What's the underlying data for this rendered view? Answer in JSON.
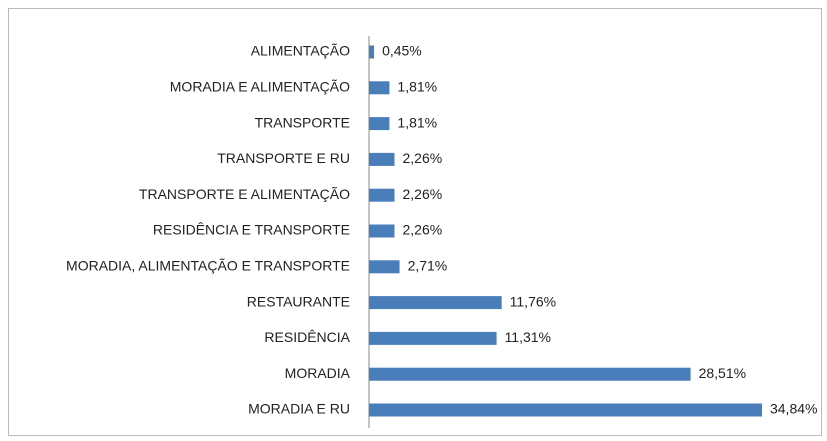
{
  "chart_data": {
    "type": "barh",
    "categories": [
      "ALIMENTAÇÃO",
      "MORADIA E ALIMENTAÇÃO",
      "TRANSPORTE",
      "TRANSPORTE E RU",
      "TRANSPORTE E ALIMENTAÇÃO",
      "RESIDÊNCIA E TRANSPORTE",
      "MORADIA, ALIMENTAÇÃO E TRANSPORTE",
      "RESTAURANTE",
      "RESIDÊNCIA",
      "MORADIA",
      "MORADIA E RU"
    ],
    "values": [
      0.45,
      1.81,
      1.81,
      2.26,
      2.26,
      2.26,
      2.71,
      11.76,
      11.31,
      28.51,
      34.84
    ],
    "value_labels": [
      "0,45%",
      "1,81%",
      "1,81%",
      "2,26%",
      "2,26%",
      "2,26%",
      "2,71%",
      "11,76%",
      "11,31%",
      "28,51%",
      "34,84%"
    ],
    "color": "#4a7ebb"
  }
}
